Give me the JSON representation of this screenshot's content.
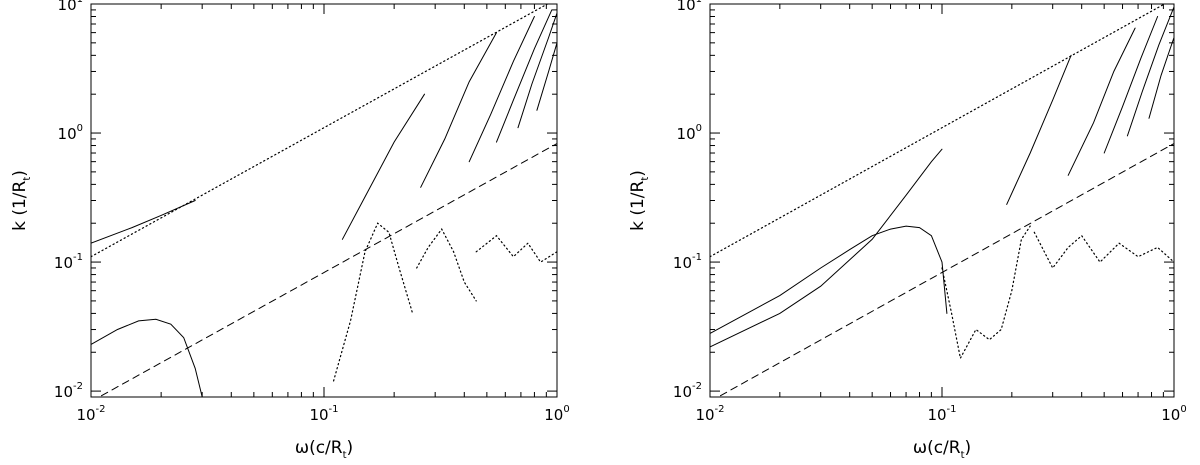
{
  "chart_data": [
    {
      "type": "line",
      "panel": "left",
      "xscale": "log",
      "yscale": "log",
      "xlim": [
        0.01,
        1
      ],
      "ylim": [
        0.009,
        10
      ],
      "xlabel": {
        "main": "ω(c/R",
        "sub": "t",
        "tail": ")"
      },
      "ylabel": {
        "main": "k (1/R",
        "sub": "t",
        "tail": ")"
      },
      "xticks": [
        {
          "base": "10",
          "exp": "-2",
          "value": 0.01
        },
        {
          "base": "10",
          "exp": "-1",
          "value": 0.1
        },
        {
          "base": "10",
          "exp": "0",
          "value": 1
        }
      ],
      "yticks": [
        {
          "base": "10",
          "exp": "-2",
          "value": 0.01
        },
        {
          "base": "10",
          "exp": "-1",
          "value": 0.1
        },
        {
          "base": "10",
          "exp": "0",
          "value": 1
        },
        {
          "base": "10",
          "exp": "1",
          "value": 10
        }
      ],
      "series": [
        {
          "style": "dotted",
          "x": [
            0.01,
            1
          ],
          "y": [
            0.11,
            11
          ]
        },
        {
          "style": "dashed",
          "x": [
            0.01,
            1
          ],
          "y": [
            0.0083,
            0.83
          ]
        },
        {
          "style": "solid",
          "x": [
            0.01,
            0.015,
            0.02,
            0.028
          ],
          "y": [
            0.14,
            0.185,
            0.23,
            0.3
          ]
        },
        {
          "style": "solid",
          "x": [
            0.01,
            0.013,
            0.016,
            0.019,
            0.022,
            0.025,
            0.028,
            0.03
          ],
          "y": [
            0.023,
            0.03,
            0.035,
            0.036,
            0.033,
            0.026,
            0.015,
            0.009
          ]
        },
        {
          "style": "solid",
          "x": [
            0.12,
            0.15,
            0.2,
            0.27
          ],
          "y": [
            0.15,
            0.32,
            0.85,
            2.0
          ]
        },
        {
          "style": "solid",
          "x": [
            0.26,
            0.33,
            0.42,
            0.55
          ],
          "y": [
            0.38,
            0.9,
            2.5,
            6.0
          ]
        },
        {
          "style": "solid",
          "x": [
            0.42,
            0.52,
            0.65,
            0.8
          ],
          "y": [
            0.6,
            1.4,
            3.6,
            8.0
          ]
        },
        {
          "style": "solid",
          "x": [
            0.55,
            0.65,
            0.8,
            0.95
          ],
          "y": [
            0.85,
            1.8,
            4.5,
            9.0
          ]
        },
        {
          "style": "solid",
          "x": [
            0.68,
            0.78,
            0.92,
            1.0
          ],
          "y": [
            1.1,
            2.4,
            5.5,
            8.5
          ]
        },
        {
          "style": "solid",
          "x": [
            0.82,
            0.92,
            1.0
          ],
          "y": [
            1.5,
            3.0,
            5.0
          ]
        },
        {
          "style": "dotted",
          "x": [
            0.11,
            0.13,
            0.15,
            0.17,
            0.19,
            0.21,
            0.24
          ],
          "y": [
            0.012,
            0.035,
            0.12,
            0.2,
            0.17,
            0.09,
            0.04
          ]
        },
        {
          "style": "dotted",
          "x": [
            0.25,
            0.28,
            0.32,
            0.36,
            0.4,
            0.45
          ],
          "y": [
            0.09,
            0.13,
            0.18,
            0.12,
            0.07,
            0.05
          ]
        },
        {
          "style": "dotted",
          "x": [
            0.45,
            0.55,
            0.65,
            0.75,
            0.85,
            1.0
          ],
          "y": [
            0.12,
            0.16,
            0.11,
            0.14,
            0.1,
            0.12
          ]
        }
      ]
    },
    {
      "type": "line",
      "panel": "right",
      "xscale": "log",
      "yscale": "log",
      "xlim": [
        0.01,
        1
      ],
      "ylim": [
        0.009,
        10
      ],
      "xlabel": {
        "main": "ω(c/R",
        "sub": "t",
        "tail": ")"
      },
      "ylabel": {
        "main": "k (1/R",
        "sub": "t",
        "tail": ")"
      },
      "xticks": [
        {
          "base": "10",
          "exp": "-2",
          "value": 0.01
        },
        {
          "base": "10",
          "exp": "-1",
          "value": 0.1
        },
        {
          "base": "10",
          "exp": "0",
          "value": 1
        }
      ],
      "yticks": [
        {
          "base": "10",
          "exp": "-2",
          "value": 0.01
        },
        {
          "base": "10",
          "exp": "-1",
          "value": 0.1
        },
        {
          "base": "10",
          "exp": "0",
          "value": 1
        },
        {
          "base": "10",
          "exp": "1",
          "value": 10
        }
      ],
      "series": [
        {
          "style": "dotted",
          "x": [
            0.01,
            1
          ],
          "y": [
            0.11,
            11
          ]
        },
        {
          "style": "dashed",
          "x": [
            0.01,
            1
          ],
          "y": [
            0.0083,
            0.83
          ]
        },
        {
          "style": "solid",
          "x": [
            0.01,
            0.02,
            0.03,
            0.05,
            0.07,
            0.09,
            0.1
          ],
          "y": [
            0.022,
            0.04,
            0.065,
            0.15,
            0.33,
            0.6,
            0.75
          ]
        },
        {
          "style": "solid",
          "x": [
            0.01,
            0.02,
            0.03,
            0.04,
            0.05,
            0.06,
            0.07,
            0.08,
            0.09,
            0.1,
            0.105
          ],
          "y": [
            0.028,
            0.055,
            0.09,
            0.125,
            0.16,
            0.18,
            0.19,
            0.185,
            0.16,
            0.1,
            0.04
          ]
        },
        {
          "style": "solid",
          "x": [
            0.19,
            0.24,
            0.3,
            0.36
          ],
          "y": [
            0.28,
            0.7,
            1.8,
            4.0
          ]
        },
        {
          "style": "solid",
          "x": [
            0.35,
            0.45,
            0.55,
            0.68
          ],
          "y": [
            0.47,
            1.2,
            3.0,
            6.5
          ]
        },
        {
          "style": "solid",
          "x": [
            0.5,
            0.6,
            0.72,
            0.85
          ],
          "y": [
            0.7,
            1.6,
            3.8,
            8.0
          ]
        },
        {
          "style": "solid",
          "x": [
            0.63,
            0.73,
            0.86,
            1.0
          ],
          "y": [
            0.95,
            2.1,
            4.8,
            9.5
          ]
        },
        {
          "style": "solid",
          "x": [
            0.78,
            0.88,
            1.0
          ],
          "y": [
            1.3,
            2.8,
            5.5
          ]
        },
        {
          "style": "dotted",
          "x": [
            0.1,
            0.11,
            0.12,
            0.14,
            0.16,
            0.18,
            0.2,
            0.22,
            0.24
          ],
          "y": [
            0.09,
            0.04,
            0.018,
            0.03,
            0.025,
            0.03,
            0.06,
            0.15,
            0.19
          ]
        },
        {
          "style": "dotted",
          "x": [
            0.25,
            0.3,
            0.35,
            0.4,
            0.48,
            0.58,
            0.7,
            0.85,
            1.0
          ],
          "y": [
            0.17,
            0.09,
            0.13,
            0.16,
            0.1,
            0.14,
            0.11,
            0.13,
            0.1
          ]
        }
      ]
    }
  ]
}
